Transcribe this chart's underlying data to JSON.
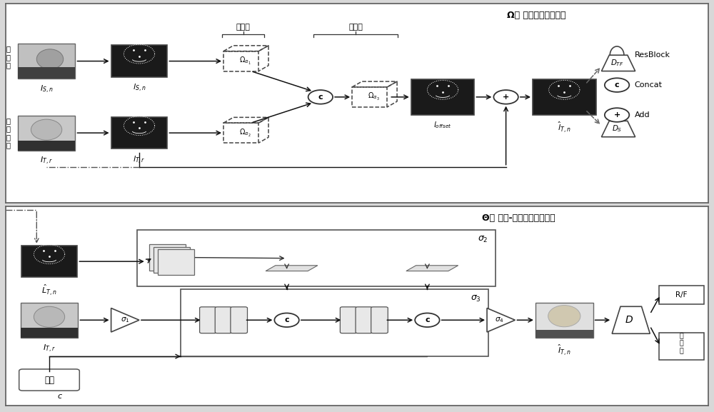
{
  "title_top": "Ω： 人脸特征点生成器",
  "title_bottom": "Θ： 几何-属性感知的生成器",
  "encoder_label": "编码器",
  "decoder_label": "解码器",
  "src_text": "源\n人\n脸",
  "tgt_text": "目\n标\n人\n脸",
  "tag_text": "标签",
  "legend_resblock": "ResBlock",
  "legend_concat": "Concat",
  "legend_add": "Add",
  "bg_color": "#d8d8d8",
  "panel_bg": "#ffffff"
}
